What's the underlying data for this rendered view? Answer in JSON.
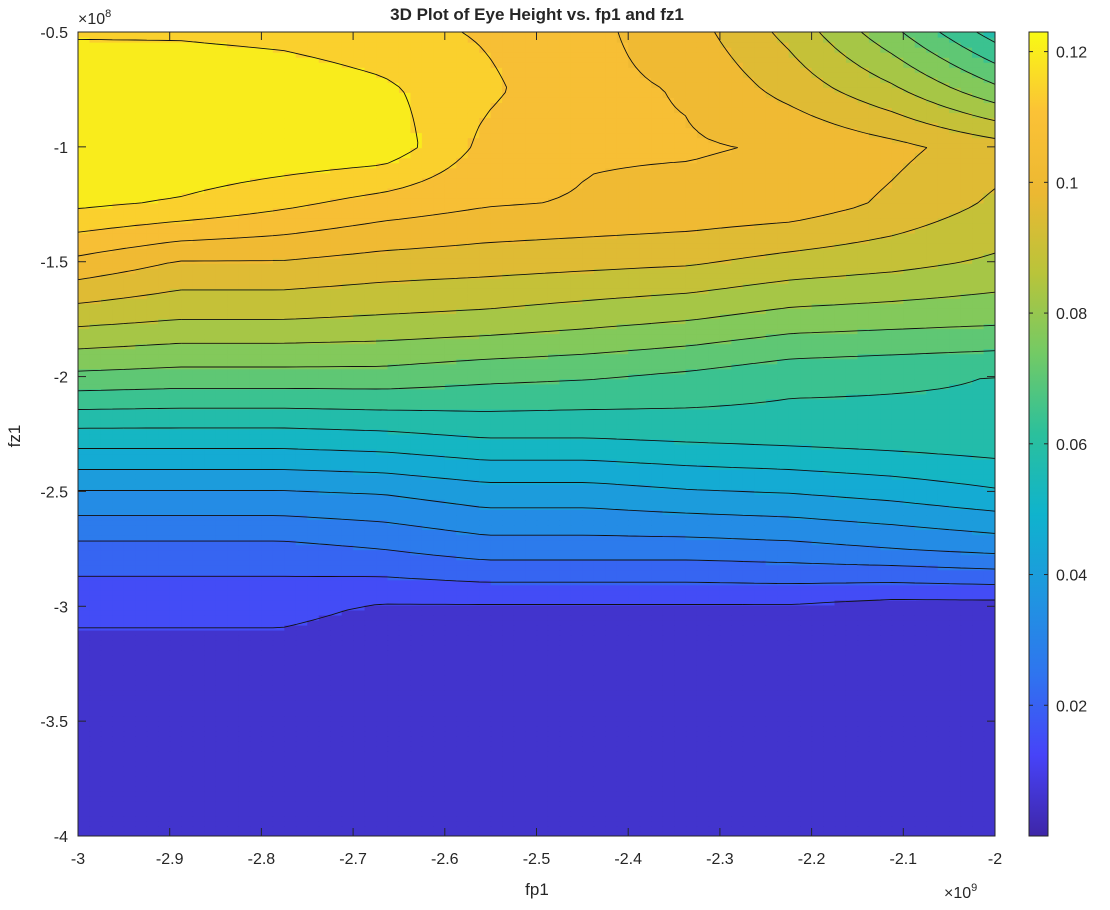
{
  "chart_data": {
    "type": "contour",
    "title": "3D Plot of Eye Height vs. fp1 and fz1",
    "xlabel": "fp1",
    "ylabel": "fz1",
    "x_exponent_base": "×10",
    "x_exponent_power": "9",
    "y_exponent_base": "×10",
    "y_exponent_power": "8",
    "xlim": [
      -3000000000.0,
      -2000000000.0
    ],
    "ylim": [
      -400000000.0,
      -50000000.0
    ],
    "x_ticks": [
      -3,
      -2.9,
      -2.8,
      -2.7,
      -2.6,
      -2.5,
      -2.4,
      -2.3,
      -2.2,
      -2.1,
      -2
    ],
    "x_tick_labels": [
      "-3",
      "-2.9",
      "-2.8",
      "-2.7",
      "-2.6",
      "-2.5",
      "-2.4",
      "-2.3",
      "-2.2",
      "-2.1",
      "-2"
    ],
    "y_ticks": [
      -4,
      -3.5,
      -3,
      -2.5,
      -2,
      -1.5,
      -1,
      -0.5
    ],
    "y_tick_labels": [
      "-4",
      "-3.5",
      "-3",
      "-2.5",
      "-2",
      "-1.5",
      "-1",
      "-0.5"
    ],
    "colorbar_ticks": [
      0.02,
      0.04,
      0.06,
      0.08,
      0.1,
      0.12
    ],
    "colorbar_tick_labels": [
      "0.02",
      "0.04",
      "0.06",
      "0.08",
      "0.1",
      "0.12"
    ],
    "colorbar_range": [
      0.0,
      0.123
    ],
    "colormap": "parula",
    "colormap_stops": [
      "#3e26a8",
      "#4743f8",
      "#2f74ef",
      "#1f96e0",
      "#0fb3cd",
      "#2bc09c",
      "#73ca65",
      "#b9c43a",
      "#ecb832",
      "#fbc236",
      "#f9fa14"
    ],
    "levels": [
      0.0115,
      0.0177,
      0.0239,
      0.0301,
      0.0363,
      0.0425,
      0.0487,
      0.0549,
      0.0611,
      0.0673,
      0.0735,
      0.0797,
      0.0859,
      0.0921,
      0.0983,
      0.1045,
      0.1107,
      0.1169
    ],
    "grid": "off",
    "x": [
      -3.0,
      -2.8889,
      -2.7778,
      -2.6667,
      -2.5556,
      -2.4444,
      -2.3333,
      -2.2222,
      -2.1111,
      -2.0
    ],
    "y": [
      -4.0,
      -3.5,
      -3.0,
      -2.75,
      -2.5,
      -2.25,
      -2.0,
      -1.75,
      -1.5,
      -1.25,
      -1.0,
      -0.75,
      -0.5
    ],
    "z": [
      [
        0.001,
        0.001,
        0.001,
        0.001,
        0.001,
        0.001,
        0.001,
        0.001,
        0.001,
        0.001
      ],
      [
        0.005,
        0.005,
        0.005,
        0.005,
        0.005,
        0.005,
        0.005,
        0.005,
        0.005,
        0.005
      ],
      [
        0.013,
        0.013,
        0.013,
        0.011,
        0.011,
        0.011,
        0.011,
        0.011,
        0.009,
        0.009
      ],
      [
        0.022,
        0.022,
        0.022,
        0.024,
        0.027,
        0.027,
        0.027,
        0.028,
        0.03,
        0.032
      ],
      [
        0.036,
        0.036,
        0.036,
        0.037,
        0.04,
        0.04,
        0.042,
        0.043,
        0.045,
        0.048
      ],
      [
        0.053,
        0.053,
        0.053,
        0.054,
        0.056,
        0.056,
        0.057,
        0.058,
        0.059,
        0.06
      ],
      [
        0.072,
        0.071,
        0.071,
        0.071,
        0.069,
        0.068,
        0.066,
        0.063,
        0.062,
        0.061
      ],
      [
        0.088,
        0.086,
        0.086,
        0.085,
        0.084,
        0.082,
        0.08,
        0.077,
        0.076,
        0.075
      ],
      [
        0.103,
        0.098,
        0.098,
        0.096,
        0.095,
        0.094,
        0.093,
        0.09,
        0.088,
        0.085
      ],
      [
        0.118,
        0.116,
        0.112,
        0.108,
        0.105,
        0.104,
        0.103,
        0.102,
        0.097,
        0.091
      ],
      [
        0.123,
        0.123,
        0.122,
        0.121,
        0.109,
        0.105,
        0.105,
        0.104,
        0.1,
        0.095
      ],
      [
        0.123,
        0.122,
        0.121,
        0.118,
        0.112,
        0.106,
        0.104,
        0.096,
        0.087,
        0.075
      ],
      [
        0.116,
        0.116,
        0.115,
        0.113,
        0.11,
        0.106,
        0.101,
        0.09,
        0.075,
        0.058
      ]
    ]
  }
}
